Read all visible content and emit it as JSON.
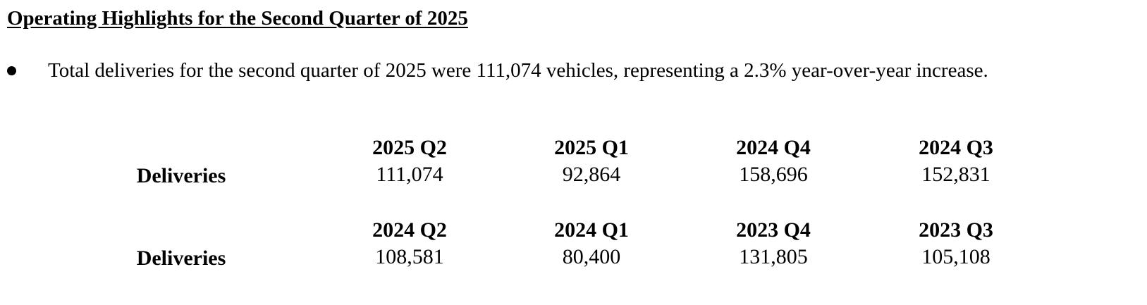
{
  "heading": "Operating Highlights for the Second Quarter of 2025",
  "bullets": [
    "Total deliveries for the second quarter of 2025 were 111,074 vehicles, representing a 2.3% year-over-year increase."
  ],
  "table": {
    "blocks": [
      {
        "label": "Deliveries",
        "columns": [
          {
            "period": "2025 Q2",
            "value": "111,074"
          },
          {
            "period": "2025 Q1",
            "value": "92,864"
          },
          {
            "period": "2024 Q4",
            "value": "158,696"
          },
          {
            "period": "2024 Q3",
            "value": "152,831"
          }
        ]
      },
      {
        "label": "Deliveries",
        "columns": [
          {
            "period": "2024 Q2",
            "value": "108,581"
          },
          {
            "period": "2024 Q1",
            "value": "80,400"
          },
          {
            "period": "2023 Q4",
            "value": "131,805"
          },
          {
            "period": "2023 Q3",
            "value": "105,108"
          }
        ]
      }
    ]
  }
}
